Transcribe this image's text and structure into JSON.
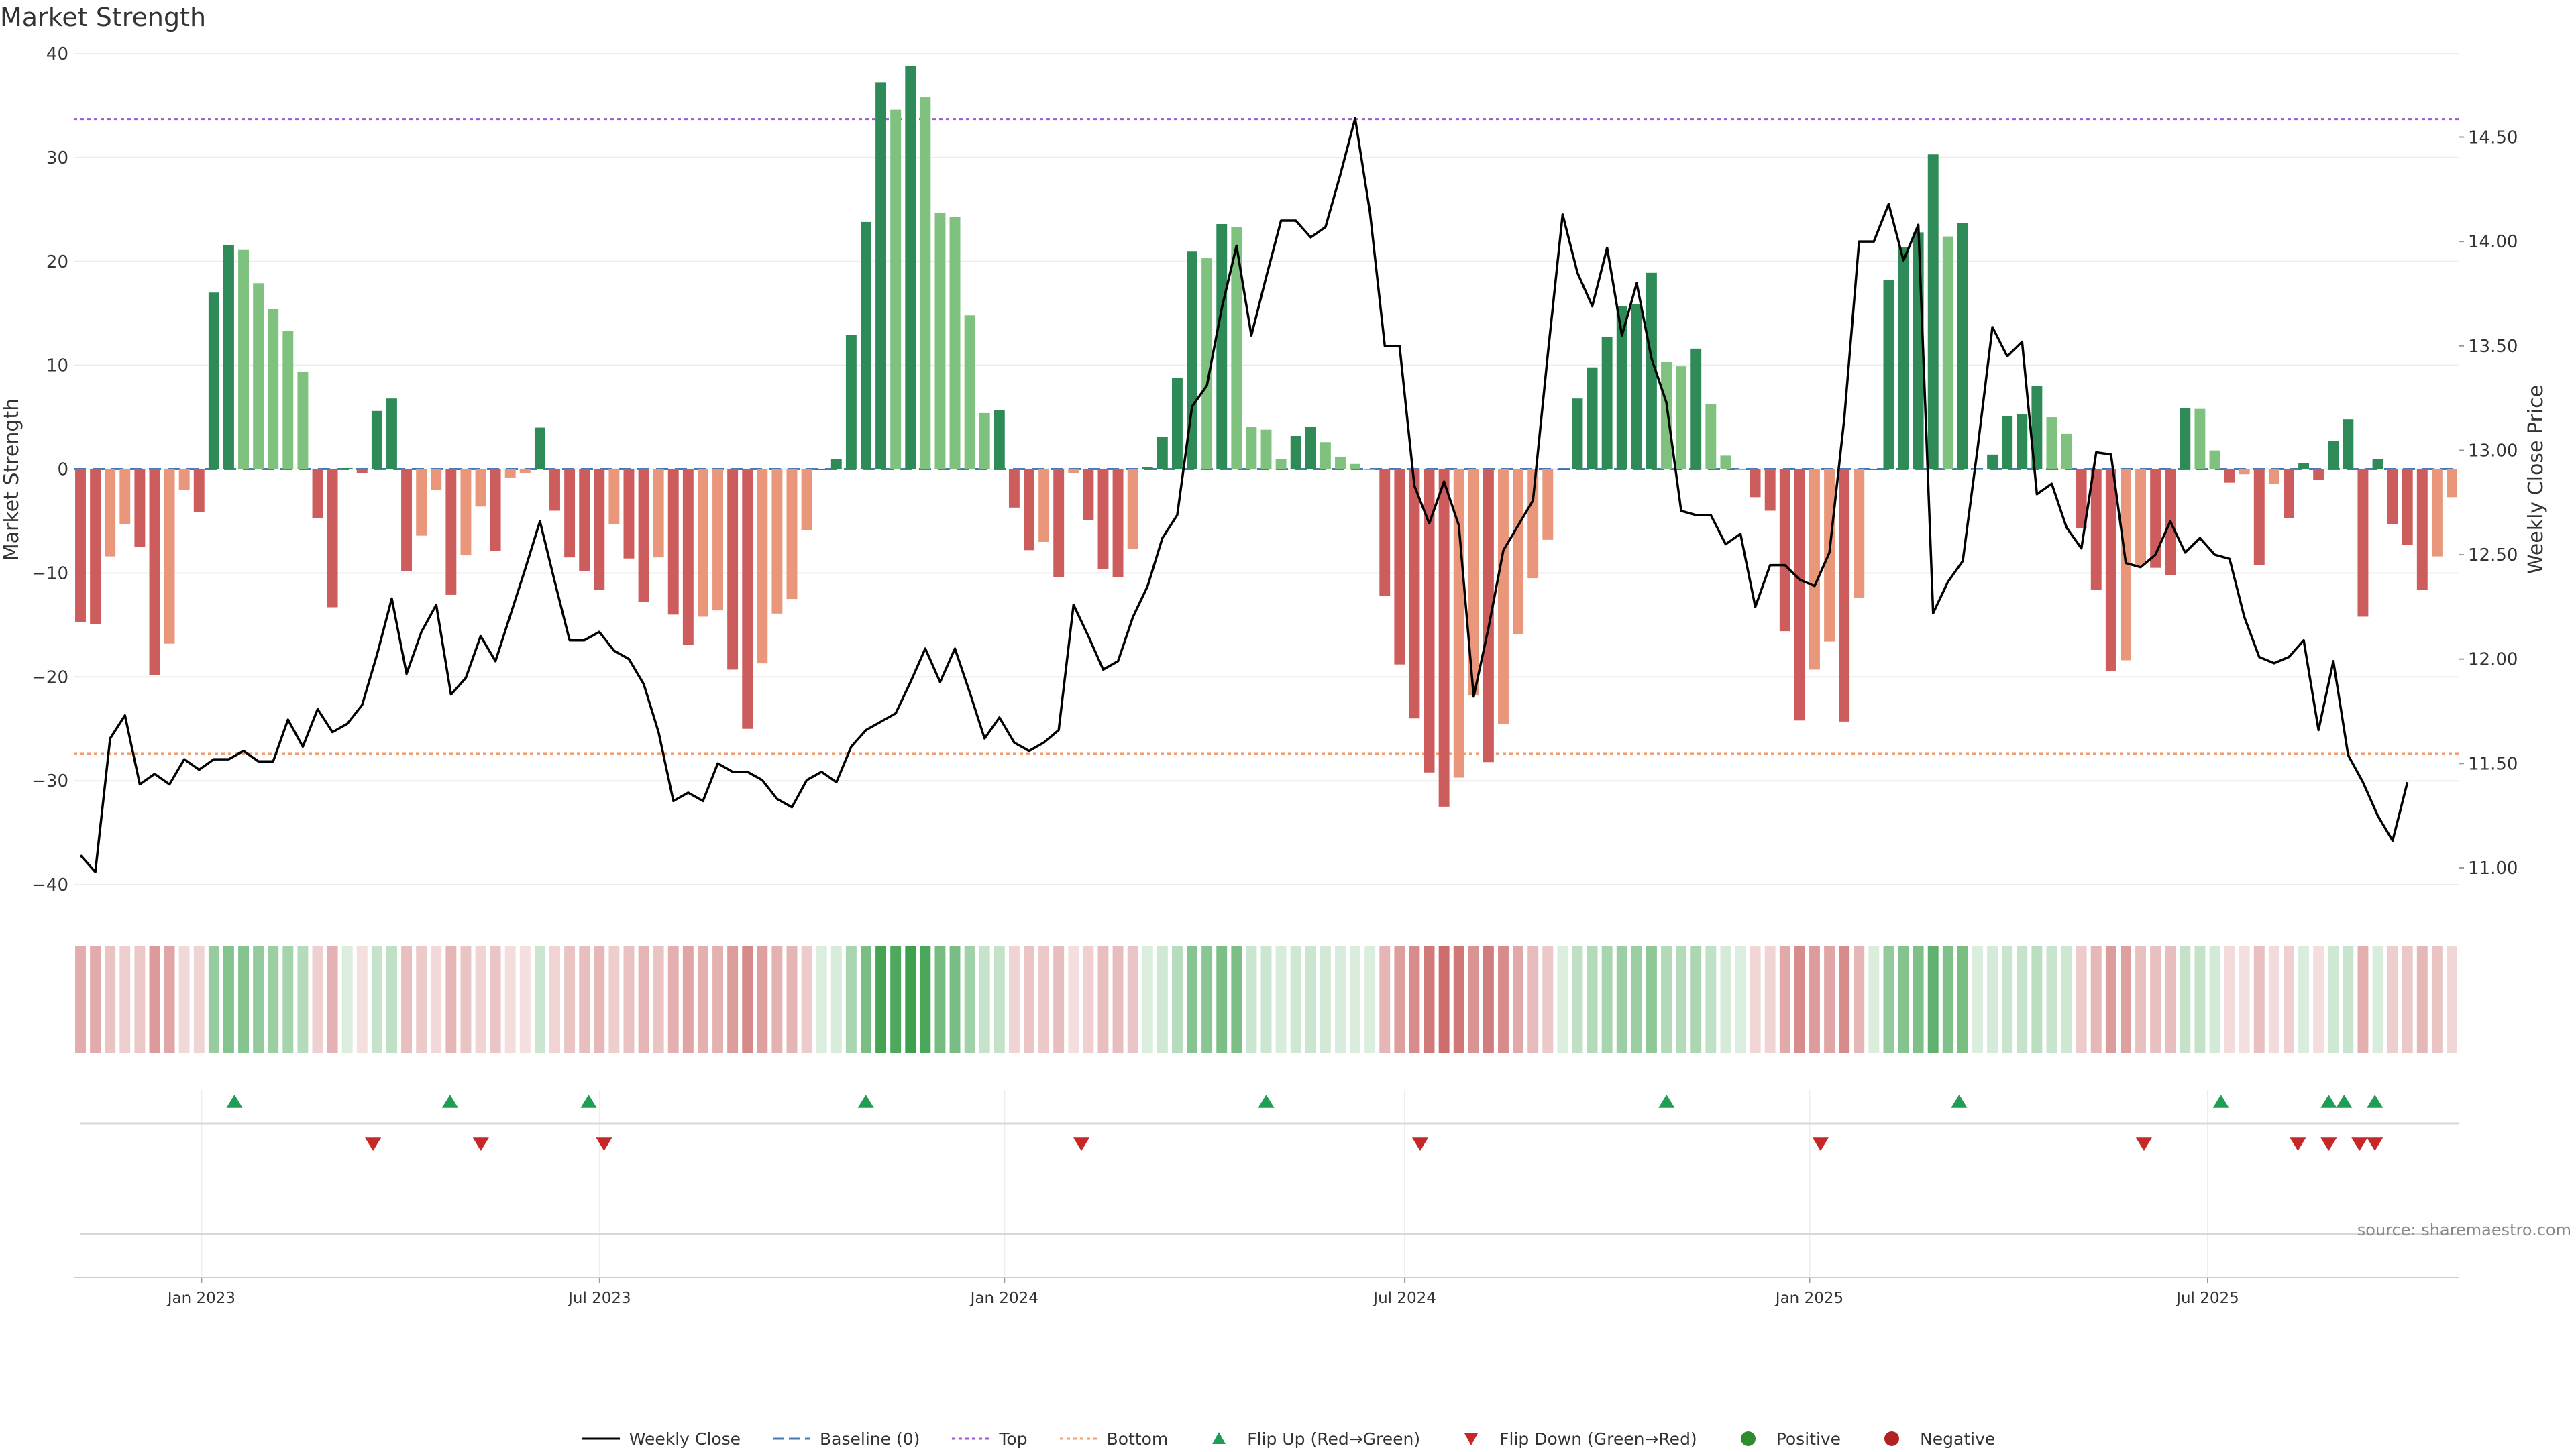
{
  "page": {
    "title": "Market Strength",
    "source": "source: sharemaestro.com"
  },
  "colors": {
    "strong_green": "#2e8b57",
    "light_green": "#7fc17f",
    "strong_red": "#cd5c5c",
    "light_red": "#e9967a",
    "line": "#000000",
    "top_line": "#9b59d6",
    "bottom_line": "#f0a070",
    "baseline": "#4a7ab5",
    "flip_up": "#1f9d55",
    "flip_down": "#c62828",
    "positive": "#2e8b2e",
    "negative": "#b22222"
  },
  "chart_data": {
    "type": "bar",
    "title": "Market Strength",
    "ylabel": "Market Strength",
    "y2label": "Weekly Close Price",
    "ylim": [
      -42,
      40
    ],
    "y2lim": [
      10.82,
      14.9
    ],
    "yticks": [
      "40",
      "30",
      "20",
      "10",
      "0",
      "−10",
      "−20",
      "−30",
      "−40"
    ],
    "y2ticks": [
      "14.50",
      "14.00",
      "13.50",
      "13.00",
      "12.50",
      "12.00",
      "11.50",
      "11.00"
    ],
    "x_start": "2022-11-07",
    "x_end": "2025-10-20",
    "x_ticks": [
      {
        "date": "2023-01-01",
        "label": "Jan 2023"
      },
      {
        "date": "2023-07-01",
        "label": "Jul 2023"
      },
      {
        "date": "2024-01-01",
        "label": "Jan 2024"
      },
      {
        "date": "2024-07-01",
        "label": "Jul 2024"
      },
      {
        "date": "2025-01-01",
        "label": "Jan 2025"
      },
      {
        "date": "2025-07-01",
        "label": "Jul 2025"
      }
    ],
    "reference_lines": {
      "top": 33.7,
      "bottom": -27.4,
      "baseline": 0
    },
    "series": [
      {
        "name": "Market Strength",
        "values": [
          -14.7,
          -14.9,
          -8.4,
          -5.3,
          -7.5,
          -19.8,
          -16.8,
          -2.0,
          -4.1,
          17.0,
          21.6,
          21.1,
          17.9,
          15.4,
          13.3,
          9.4,
          -4.7,
          -13.3,
          0.1,
          -0.4,
          5.6,
          6.8,
          -9.8,
          -6.4,
          -2.0,
          -12.1,
          -8.3,
          -3.6,
          -7.9,
          -0.8,
          -0.4,
          4.0,
          -4.0,
          -8.5,
          -9.8,
          -11.6,
          -5.3,
          -8.6,
          -12.8,
          -8.5,
          -14.0,
          -16.9,
          -14.2,
          -13.6,
          -19.3,
          -25.0,
          -18.7,
          -13.9,
          -12.5,
          -5.9,
          0.0,
          1.0,
          12.9,
          23.8,
          37.2,
          34.6,
          38.8,
          35.8,
          24.7,
          24.3,
          14.8,
          5.4,
          5.7,
          -3.7,
          -7.8,
          -7.0,
          -10.4,
          -0.4,
          -4.9,
          -9.6,
          -10.4,
          -7.7,
          0.2,
          3.1,
          8.8,
          21.0,
          20.3,
          23.6,
          23.3,
          4.1,
          3.8,
          1.0,
          3.2,
          4.1,
          2.6,
          1.2,
          0.5,
          0.0,
          -12.2,
          -18.8,
          -24.0,
          -29.2,
          -32.5,
          -29.7,
          -21.8,
          -28.2,
          -24.5,
          -15.9,
          -10.5,
          -6.8,
          0.0,
          6.8,
          9.8,
          12.7,
          15.7,
          15.9,
          18.9,
          10.3,
          9.9,
          11.6,
          6.3,
          1.3,
          0.0,
          -2.7,
          -4.0,
          -15.6,
          -24.2,
          -19.3,
          -16.6,
          -24.3,
          -12.4,
          0.0,
          18.2,
          21.4,
          22.8,
          30.3,
          22.4,
          23.7,
          0.0,
          1.4,
          5.1,
          5.3,
          8.0,
          5.0,
          3.4,
          -5.7,
          -11.6,
          -19.4,
          -18.4,
          -9.2,
          -9.5,
          -10.2,
          5.9,
          5.8,
          1.8,
          -1.3,
          -0.5,
          -9.2,
          -1.4,
          -4.7,
          0.6,
          -1.0,
          2.7,
          4.8,
          -14.2,
          1.0,
          -5.3,
          -7.3,
          -11.6,
          -8.4,
          -2.7
        ]
      },
      {
        "name": "Weekly Close",
        "values": [
          11.06,
          10.98,
          11.62,
          11.73,
          11.4,
          11.45,
          11.4,
          11.52,
          11.47,
          11.52,
          11.52,
          11.56,
          11.51,
          11.51,
          11.71,
          11.58,
          11.76,
          11.65,
          11.69,
          11.78,
          12.02,
          12.29,
          11.93,
          12.13,
          12.26,
          11.83,
          11.91,
          12.11,
          11.99,
          12.21,
          12.43,
          12.66,
          12.37,
          12.09,
          12.09,
          12.13,
          12.04,
          12.0,
          11.88,
          11.65,
          11.32,
          11.36,
          11.32,
          11.5,
          11.46,
          11.46,
          11.42,
          11.33,
          11.29,
          11.42,
          11.46,
          11.41,
          11.58,
          11.66,
          11.7,
          11.74,
          11.89,
          12.05,
          11.89,
          12.05,
          11.84,
          11.62,
          11.72,
          11.6,
          11.56,
          11.6,
          11.66,
          12.26,
          12.11,
          11.95,
          11.99,
          12.2,
          12.35,
          12.58,
          12.69,
          13.21,
          13.31,
          13.68,
          13.98,
          13.55,
          13.83,
          14.1,
          14.1,
          14.02,
          14.07,
          14.32,
          14.59,
          14.14,
          13.5,
          13.5,
          12.83,
          12.65,
          12.85,
          12.64,
          11.82,
          12.15,
          12.52,
          12.64,
          12.76,
          13.46,
          14.13,
          13.85,
          13.69,
          13.97,
          13.55,
          13.8,
          13.44,
          13.23,
          12.71,
          12.69,
          12.69,
          12.55,
          12.6,
          12.25,
          12.45,
          12.45,
          12.38,
          12.35,
          12.51,
          13.15,
          14.0,
          14.0,
          14.18,
          13.91,
          14.08,
          12.22,
          12.37,
          12.47,
          13.01,
          13.59,
          13.45,
          13.52,
          12.79,
          12.84,
          12.63,
          12.53,
          12.99,
          12.98,
          12.46,
          12.44,
          12.5,
          12.66,
          12.51,
          12.58,
          12.5,
          12.48,
          12.2,
          12.01,
          11.98,
          12.01,
          12.09,
          11.66,
          11.99,
          11.54,
          11.41,
          11.25,
          11.13,
          11.41
        ]
      }
    ],
    "flip_up_dates": [
      "2023-01-16",
      "2023-04-24",
      "2023-06-26",
      "2023-10-30",
      "2024-04-29",
      "2024-10-28",
      "2025-03-10",
      "2025-07-07",
      "2025-08-25",
      "2025-09-01",
      "2025-09-15"
    ],
    "flip_down_dates": [
      "2023-03-20",
      "2023-05-08",
      "2023-07-03",
      "2024-02-05",
      "2024-07-08",
      "2025-01-06",
      "2025-06-02",
      "2025-08-11",
      "2025-08-25",
      "2025-09-08",
      "2025-09-15"
    ],
    "legend": [
      {
        "key": "line",
        "label": "Weekly Close"
      },
      {
        "key": "baseline",
        "label": "Baseline (0)"
      },
      {
        "key": "top",
        "label": "Top"
      },
      {
        "key": "bottom",
        "label": "Bottom"
      },
      {
        "key": "flip_up",
        "label": "Flip Up (Red→Green)"
      },
      {
        "key": "flip_down",
        "label": "Flip Down (Green→Red)"
      },
      {
        "key": "positive",
        "label": "Positive"
      },
      {
        "key": "negative",
        "label": "Negative"
      }
    ]
  }
}
